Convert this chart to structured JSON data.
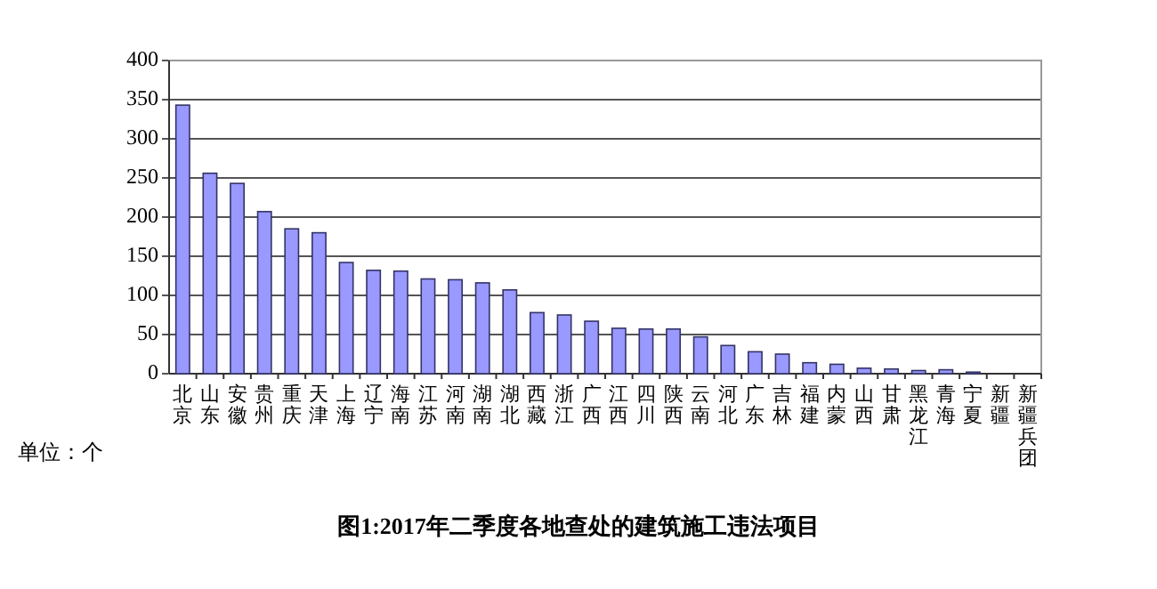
{
  "chart_data": {
    "type": "bar",
    "title": "图1:2017年二季度各地查处的建筑施工违法项目",
    "categories": [
      "北京",
      "山东",
      "安徽",
      "贵州",
      "重庆",
      "天津",
      "上海",
      "辽宁",
      "海南",
      "江苏",
      "河南",
      "湖南",
      "湖北",
      "西藏",
      "浙江",
      "广西",
      "江西",
      "四川",
      "陕西",
      "云南",
      "河北",
      "广东",
      "吉林",
      "福建",
      "内蒙",
      "山西",
      "甘肃",
      "黑龙江",
      "青海",
      "宁夏",
      "新疆",
      "新疆兵团"
    ],
    "values": [
      343,
      256,
      243,
      207,
      185,
      180,
      142,
      132,
      131,
      121,
      120,
      116,
      107,
      78,
      75,
      67,
      58,
      57,
      57,
      47,
      36,
      28,
      25,
      14,
      12,
      7,
      6,
      4,
      5,
      2,
      0,
      0
    ],
    "color": "#9999ff",
    "ylim": [
      0,
      400
    ],
    "yticks": [
      0,
      50,
      100,
      150,
      200,
      250,
      300,
      350,
      400
    ],
    "grid": "y",
    "annotations": [
      "单位：个"
    ]
  }
}
